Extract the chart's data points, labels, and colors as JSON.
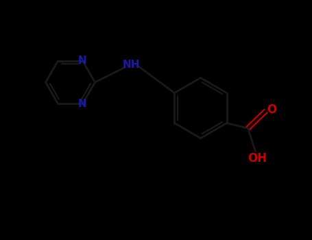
{
  "background_color": "#000000",
  "bond_color": "#1a1a1a",
  "n_color": "#1a1aaa",
  "o_color": "#cc0000",
  "nh_color": "#1a1aaa",
  "fig_width": 4.55,
  "fig_height": 3.5,
  "dpi": 100,
  "xlim": [
    0,
    9
  ],
  "ylim": [
    0,
    7
  ]
}
